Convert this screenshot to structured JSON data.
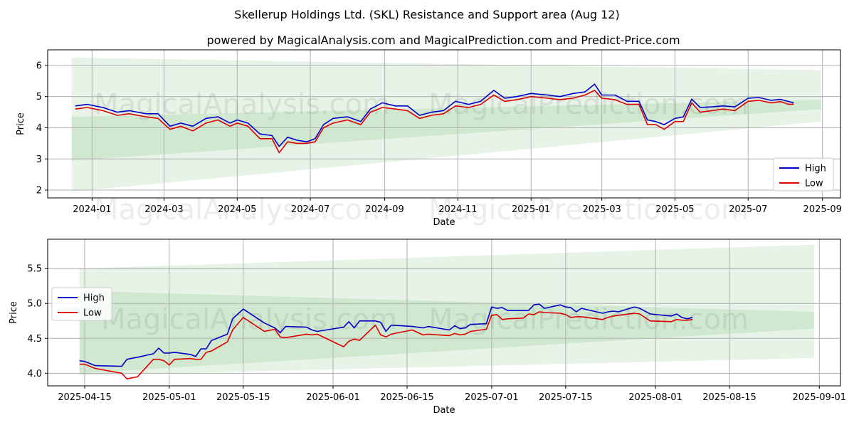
{
  "figure": {
    "title": "Skellerup Holdings Ltd. (SKL) Resistance and Support area (Aug 12)",
    "subtitle": "powered by MagicalAnalysis.com and MagicalPrediction.com and Predict-Price.com",
    "watermark_left": "MagicalAnalysis.com",
    "watermark_right": "MagicalPrediction.com"
  },
  "colors": {
    "high": "#0000cc",
    "low": "#e00000",
    "band": "#2e9a2e",
    "grid": "#b0b0b0"
  },
  "chart_data": [
    {
      "type": "line",
      "xlabel": "Date",
      "ylabel": "Price",
      "x_axis_type": "date",
      "xlim": [
        "2023-11-25",
        "2025-09-16"
      ],
      "ylim": [
        1.75,
        6.5
      ],
      "x_ticks": [
        "2024-01-01",
        "2024-03-01",
        "2024-05-01",
        "2024-07-01",
        "2024-09-01",
        "2024-11-01",
        "2025-01-01",
        "2025-03-01",
        "2025-05-01",
        "2025-07-01",
        "2025-09-01"
      ],
      "x_tick_labels": [
        "2024-01",
        "2024-03",
        "2024-05",
        "2024-07",
        "2024-09",
        "2024-11",
        "2025-01",
        "2025-03",
        "2025-05",
        "2025-07",
        "2025-09"
      ],
      "y_ticks": [
        2,
        3,
        4,
        5,
        6
      ],
      "y_tick_labels": [
        "2",
        "3",
        "4",
        "5",
        "6"
      ],
      "grid": true,
      "legend": {
        "position": "lower-right",
        "entries": [
          "High",
          "Low"
        ]
      },
      "bands": [
        {
          "x": [
            "2023-12-15",
            "2025-08-31"
          ],
          "upper": [
            6.25,
            5.85
          ],
          "lower": [
            1.95,
            4.2
          ],
          "opacity": 0.12
        },
        {
          "x": [
            "2023-12-15",
            "2025-08-31"
          ],
          "upper": [
            4.35,
            4.9
          ],
          "lower": [
            2.95,
            4.6
          ],
          "opacity": 0.12
        }
      ],
      "series": [
        {
          "name": "High",
          "x": [
            "2023-12-18",
            "2023-12-28",
            "2024-01-10",
            "2024-01-22",
            "2024-02-01",
            "2024-02-15",
            "2024-02-25",
            "2024-03-06",
            "2024-03-15",
            "2024-03-25",
            "2024-04-05",
            "2024-04-15",
            "2024-04-25",
            "2024-05-01",
            "2024-05-10",
            "2024-05-20",
            "2024-05-30",
            "2024-06-05",
            "2024-06-12",
            "2024-06-20",
            "2024-06-28",
            "2024-07-05",
            "2024-07-12",
            "2024-07-20",
            "2024-08-01",
            "2024-08-12",
            "2024-08-20",
            "2024-08-30",
            "2024-09-10",
            "2024-09-20",
            "2024-09-30",
            "2024-10-10",
            "2024-10-20",
            "2024-10-30",
            "2024-11-10",
            "2024-11-20",
            "2024-12-01",
            "2024-12-10",
            "2024-12-20",
            "2025-01-01",
            "2025-01-15",
            "2025-01-25",
            "2025-02-05",
            "2025-02-15",
            "2025-02-23",
            "2025-03-01",
            "2025-03-12",
            "2025-03-22",
            "2025-04-01",
            "2025-04-08",
            "2025-04-15",
            "2025-04-22",
            "2025-05-01",
            "2025-05-08",
            "2025-05-15",
            "2025-05-22",
            "2025-06-01",
            "2025-06-10",
            "2025-06-20",
            "2025-07-01",
            "2025-07-10",
            "2025-07-20",
            "2025-07-28",
            "2025-08-04",
            "2025-08-08"
          ],
          "values": [
            4.7,
            4.75,
            4.65,
            4.5,
            4.55,
            4.45,
            4.45,
            4.05,
            4.15,
            4.05,
            4.3,
            4.35,
            4.15,
            4.25,
            4.15,
            3.8,
            3.75,
            3.4,
            3.7,
            3.6,
            3.55,
            3.65,
            4.1,
            4.3,
            4.35,
            4.2,
            4.6,
            4.8,
            4.7,
            4.7,
            4.4,
            4.5,
            4.55,
            4.85,
            4.75,
            4.85,
            5.2,
            4.95,
            5.0,
            5.1,
            5.05,
            5.0,
            5.1,
            5.15,
            5.4,
            5.05,
            5.05,
            4.85,
            4.85,
            4.25,
            4.2,
            4.1,
            4.3,
            4.35,
            4.92,
            4.65,
            4.67,
            4.7,
            4.67,
            4.95,
            4.97,
            4.88,
            4.91,
            4.84,
            4.8
          ]
        },
        {
          "name": "Low",
          "x": [
            "2023-12-18",
            "2023-12-28",
            "2024-01-10",
            "2024-01-22",
            "2024-02-01",
            "2024-02-15",
            "2024-02-25",
            "2024-03-06",
            "2024-03-15",
            "2024-03-25",
            "2024-04-05",
            "2024-04-15",
            "2024-04-25",
            "2024-05-01",
            "2024-05-10",
            "2024-05-20",
            "2024-05-30",
            "2024-06-05",
            "2024-06-12",
            "2024-06-20",
            "2024-06-28",
            "2024-07-05",
            "2024-07-12",
            "2024-07-20",
            "2024-08-01",
            "2024-08-12",
            "2024-08-20",
            "2024-08-30",
            "2024-09-10",
            "2024-09-20",
            "2024-09-30",
            "2024-10-10",
            "2024-10-20",
            "2024-10-30",
            "2024-11-10",
            "2024-11-20",
            "2024-12-01",
            "2024-12-10",
            "2024-12-20",
            "2025-01-01",
            "2025-01-15",
            "2025-01-25",
            "2025-02-05",
            "2025-02-15",
            "2025-02-23",
            "2025-03-01",
            "2025-03-12",
            "2025-03-22",
            "2025-04-01",
            "2025-04-08",
            "2025-04-15",
            "2025-04-22",
            "2025-05-01",
            "2025-05-08",
            "2025-05-15",
            "2025-05-22",
            "2025-06-01",
            "2025-06-10",
            "2025-06-20",
            "2025-07-01",
            "2025-07-10",
            "2025-07-20",
            "2025-07-28",
            "2025-08-04",
            "2025-08-08"
          ],
          "values": [
            4.6,
            4.65,
            4.55,
            4.4,
            4.45,
            4.35,
            4.3,
            3.95,
            4.05,
            3.9,
            4.15,
            4.25,
            4.05,
            4.15,
            4.05,
            3.65,
            3.65,
            3.2,
            3.55,
            3.5,
            3.5,
            3.55,
            4.0,
            4.15,
            4.25,
            4.1,
            4.5,
            4.65,
            4.6,
            4.55,
            4.3,
            4.4,
            4.45,
            4.7,
            4.65,
            4.75,
            5.05,
            4.85,
            4.9,
            5.0,
            4.95,
            4.9,
            4.95,
            5.05,
            5.2,
            4.95,
            4.9,
            4.75,
            4.75,
            4.1,
            4.1,
            3.95,
            4.2,
            4.2,
            4.8,
            4.5,
            4.55,
            4.6,
            4.55,
            4.85,
            4.88,
            4.8,
            4.84,
            4.75,
            4.76
          ]
        }
      ]
    },
    {
      "type": "line",
      "xlabel": "Date",
      "ylabel": "Price",
      "x_axis_type": "date",
      "xlim": [
        "2025-04-08",
        "2025-09-05"
      ],
      "ylim": [
        3.82,
        5.92
      ],
      "x_ticks": [
        "2025-04-15",
        "2025-05-01",
        "2025-05-15",
        "2025-06-01",
        "2025-06-15",
        "2025-07-01",
        "2025-07-15",
        "2025-08-01",
        "2025-08-15",
        "2025-09-01"
      ],
      "x_tick_labels": [
        "2025-04-15",
        "2025-05-01",
        "2025-05-15",
        "2025-06-01",
        "2025-06-15",
        "2025-07-01",
        "2025-07-15",
        "2025-08-01",
        "2025-08-15",
        "2025-09-01"
      ],
      "y_ticks": [
        4.0,
        4.5,
        5.0,
        5.5
      ],
      "y_tick_labels": [
        "4.0",
        "4.5",
        "5.0",
        "5.5"
      ],
      "grid": true,
      "legend": {
        "position": "center-left",
        "entries": [
          "High",
          "Low"
        ]
      },
      "bands": [
        {
          "x": [
            "2025-04-14",
            "2025-08-31"
          ],
          "upper": [
            5.5,
            5.84
          ],
          "lower": [
            3.97,
            4.22
          ],
          "opacity": 0.12
        },
        {
          "x": [
            "2025-04-14",
            "2025-08-31"
          ],
          "upper": [
            5.18,
            4.88
          ],
          "lower": [
            4.0,
            4.64
          ],
          "opacity": 0.12
        }
      ],
      "series": [
        {
          "name": "High",
          "x": [
            "2025-04-14",
            "2025-04-15",
            "2025-04-17",
            "2025-04-22",
            "2025-04-23",
            "2025-04-25",
            "2025-04-28",
            "2025-04-29",
            "2025-04-30",
            "2025-05-01",
            "2025-05-02",
            "2025-05-05",
            "2025-05-06",
            "2025-05-07",
            "2025-05-08",
            "2025-05-09",
            "2025-05-12",
            "2025-05-13",
            "2025-05-15",
            "2025-05-19",
            "2025-05-21",
            "2025-05-22",
            "2025-05-23",
            "2025-05-27",
            "2025-05-28",
            "2025-05-29",
            "2025-06-03",
            "2025-06-04",
            "2025-06-05",
            "2025-06-06",
            "2025-06-09",
            "2025-06-10",
            "2025-06-11",
            "2025-06-12",
            "2025-06-16",
            "2025-06-18",
            "2025-06-19",
            "2025-06-23",
            "2025-06-24",
            "2025-06-25",
            "2025-06-26",
            "2025-06-27",
            "2025-06-30",
            "2025-07-01",
            "2025-07-02",
            "2025-07-03",
            "2025-07-04",
            "2025-07-07",
            "2025-07-08",
            "2025-07-09",
            "2025-07-10",
            "2025-07-11",
            "2025-07-14",
            "2025-07-15",
            "2025-07-16",
            "2025-07-17",
            "2025-07-18",
            "2025-07-22",
            "2025-07-23",
            "2025-07-24",
            "2025-07-25",
            "2025-07-28",
            "2025-07-29",
            "2025-07-31",
            "2025-08-04",
            "2025-08-05",
            "2025-08-06",
            "2025-08-07",
            "2025-08-08"
          ],
          "values": [
            4.18,
            4.17,
            4.11,
            4.1,
            4.2,
            4.23,
            4.28,
            4.36,
            4.29,
            4.29,
            4.3,
            4.27,
            4.24,
            4.35,
            4.35,
            4.47,
            4.56,
            4.78,
            4.92,
            4.72,
            4.65,
            4.58,
            4.67,
            4.66,
            4.62,
            4.6,
            4.66,
            4.74,
            4.65,
            4.75,
            4.75,
            4.73,
            4.6,
            4.69,
            4.67,
            4.65,
            4.67,
            4.62,
            4.68,
            4.64,
            4.65,
            4.7,
            4.71,
            4.95,
            4.93,
            4.94,
            4.9,
            4.9,
            4.9,
            4.98,
            4.99,
            4.93,
            4.98,
            4.95,
            4.94,
            4.88,
            4.93,
            4.86,
            4.88,
            4.89,
            4.88,
            4.95,
            4.93,
            4.85,
            4.82,
            4.85,
            4.8,
            4.78,
            4.8
          ]
        },
        {
          "name": "Low",
          "x": [
            "2025-04-14",
            "2025-04-15",
            "2025-04-17",
            "2025-04-22",
            "2025-04-23",
            "2025-04-25",
            "2025-04-28",
            "2025-04-29",
            "2025-04-30",
            "2025-05-01",
            "2025-05-02",
            "2025-05-05",
            "2025-05-06",
            "2025-05-07",
            "2025-05-08",
            "2025-05-09",
            "2025-05-12",
            "2025-05-13",
            "2025-05-15",
            "2025-05-19",
            "2025-05-21",
            "2025-05-22",
            "2025-05-23",
            "2025-05-27",
            "2025-05-28",
            "2025-05-29",
            "2025-06-03",
            "2025-06-04",
            "2025-06-05",
            "2025-06-06",
            "2025-06-09",
            "2025-06-10",
            "2025-06-11",
            "2025-06-12",
            "2025-06-16",
            "2025-06-18",
            "2025-06-19",
            "2025-06-23",
            "2025-06-24",
            "2025-06-25",
            "2025-06-26",
            "2025-06-27",
            "2025-06-30",
            "2025-07-01",
            "2025-07-02",
            "2025-07-03",
            "2025-07-04",
            "2025-07-07",
            "2025-07-08",
            "2025-07-09",
            "2025-07-10",
            "2025-07-11",
            "2025-07-14",
            "2025-07-15",
            "2025-07-16",
            "2025-07-17",
            "2025-07-18",
            "2025-07-22",
            "2025-07-23",
            "2025-07-24",
            "2025-07-25",
            "2025-07-28",
            "2025-07-29",
            "2025-07-31",
            "2025-08-04",
            "2025-08-05",
            "2025-08-06",
            "2025-08-07",
            "2025-08-08"
          ],
          "values": [
            4.13,
            4.13,
            4.07,
            4.0,
            3.92,
            3.95,
            4.2,
            4.2,
            4.18,
            4.12,
            4.2,
            4.21,
            4.2,
            4.2,
            4.3,
            4.32,
            4.45,
            4.62,
            4.8,
            4.6,
            4.63,
            4.52,
            4.51,
            4.56,
            4.55,
            4.56,
            4.38,
            4.46,
            4.49,
            4.47,
            4.69,
            4.55,
            4.52,
            4.56,
            4.62,
            4.55,
            4.56,
            4.54,
            4.57,
            4.55,
            4.56,
            4.6,
            4.63,
            4.83,
            4.84,
            4.77,
            4.78,
            4.79,
            4.85,
            4.84,
            4.88,
            4.87,
            4.86,
            4.84,
            4.8,
            4.81,
            4.81,
            4.77,
            4.8,
            4.82,
            4.83,
            4.86,
            4.85,
            4.75,
            4.74,
            4.77,
            4.76,
            4.76,
            4.77
          ]
        }
      ]
    }
  ]
}
